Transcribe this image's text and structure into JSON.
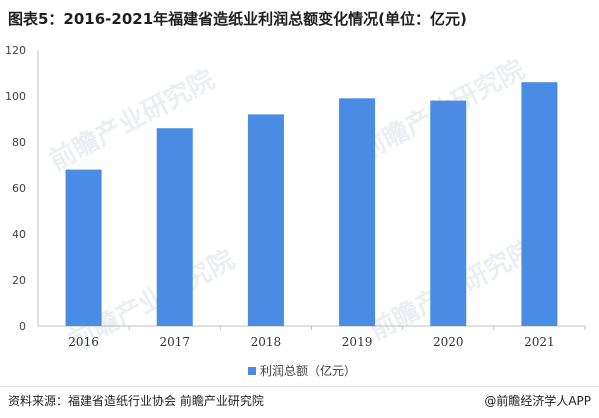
{
  "title": "图表5：2016-2021年福建省造纸业利润总额变化情况(单位：亿元)",
  "source": "资料来源：福建省造纸行业协会 前瞻产业研究院",
  "brand": "@前瞻经济学人APP",
  "watermark": "前瞻产业研究院",
  "colors": {
    "bar": "#4a8be3",
    "axis": "#bfbfbf"
  },
  "chart_data": {
    "type": "bar",
    "categories": [
      "2016",
      "2017",
      "2018",
      "2019",
      "2020",
      "2021"
    ],
    "series": [
      {
        "name": "利润总额（亿元）",
        "values": [
          68,
          86,
          92,
          99,
          98,
          106
        ]
      }
    ],
    "ylim": [
      0,
      120
    ],
    "yticks": [
      "0",
      "20",
      "40",
      "60",
      "80",
      "100",
      "120"
    ],
    "grid": false,
    "legend": "bottom-center"
  }
}
